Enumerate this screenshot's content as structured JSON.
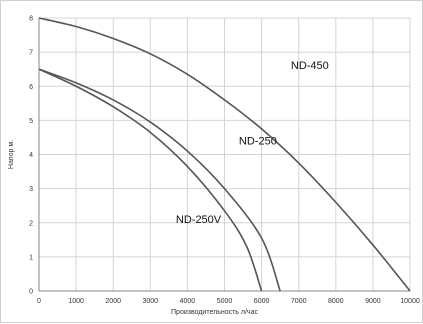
{
  "chart_data": {
    "type": "line",
    "title": "",
    "xlabel": "Производительность л/час",
    "ylabel": "Напор м.",
    "xlim": [
      0,
      10000
    ],
    "ylim": [
      0,
      8
    ],
    "x_ticks": [
      "0",
      "1000",
      "2000",
      "3000",
      "4000",
      "5000",
      "6000",
      "7000",
      "8000",
      "9000",
      "10000"
    ],
    "y_ticks": [
      "0",
      "1",
      "2",
      "3",
      "4",
      "5",
      "6",
      "7",
      "8"
    ],
    "grid": true,
    "series": [
      {
        "name": "ND-450",
        "color": "#555555",
        "points": [
          [
            0,
            8.0
          ],
          [
            1000,
            7.75
          ],
          [
            2000,
            7.4
          ],
          [
            3000,
            6.95
          ],
          [
            4000,
            6.35
          ],
          [
            5000,
            5.6
          ],
          [
            6000,
            4.75
          ],
          [
            7000,
            3.75
          ],
          [
            8000,
            2.6
          ],
          [
            9000,
            1.35
          ],
          [
            10000,
            0.0
          ]
        ]
      },
      {
        "name": "ND-250",
        "color": "#555555",
        "points": [
          [
            0,
            6.5
          ],
          [
            1000,
            6.1
          ],
          [
            2000,
            5.6
          ],
          [
            3000,
            4.95
          ],
          [
            4000,
            4.1
          ],
          [
            5000,
            3.0
          ],
          [
            6000,
            1.55
          ],
          [
            6500,
            0.0
          ]
        ]
      },
      {
        "name": "ND-250V",
        "color": "#555555",
        "points": [
          [
            0,
            6.5
          ],
          [
            1000,
            6.0
          ],
          [
            2000,
            5.4
          ],
          [
            3000,
            4.65
          ],
          [
            4000,
            3.65
          ],
          [
            5000,
            2.35
          ],
          [
            5600,
            1.3
          ],
          [
            6000,
            0.0
          ]
        ]
      }
    ]
  }
}
